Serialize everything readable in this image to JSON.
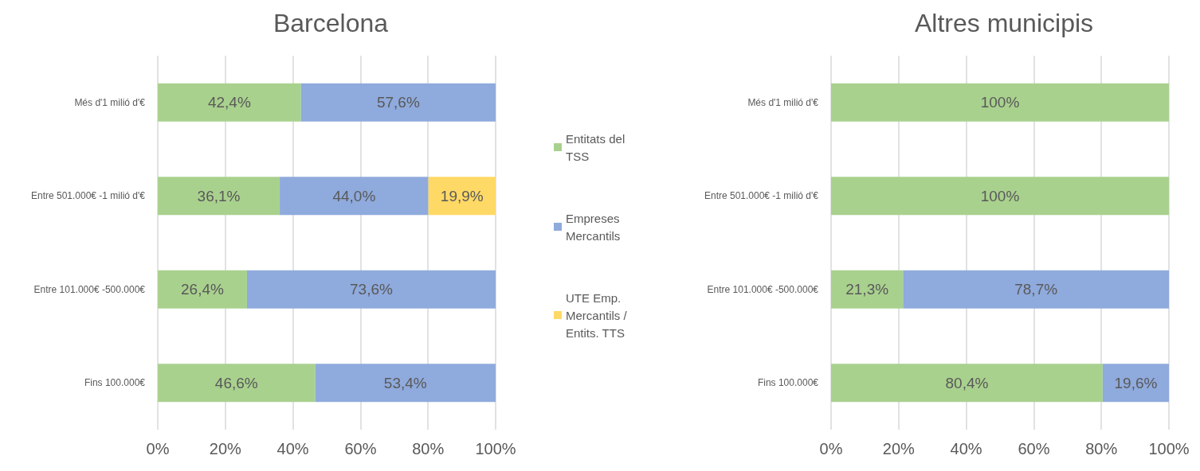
{
  "chart_data": [
    {
      "type": "bar",
      "title": "Barcelona",
      "orientation": "horizontal",
      "stacked": true,
      "grid": "x",
      "legend": "right",
      "categories": [
        "Més d'1 milió d'€",
        "Entre 501.000€ -1 milió d'€",
        "Entre 101.000€ -500.000€",
        "Fins 100.000€"
      ],
      "series": [
        {
          "name": "Entitats del TSS",
          "color": "#a9d18e",
          "values": [
            42.4,
            36.1,
            26.4,
            46.6
          ],
          "value_labels": [
            "42,4%",
            "36,1%",
            "26,4%",
            "46,6%"
          ]
        },
        {
          "name": "Empreses Mercantils",
          "color": "#8faadc",
          "values": [
            57.6,
            44.0,
            73.6,
            53.4
          ],
          "value_labels": [
            "57,6%",
            "44,0%",
            "73,6%",
            "53,4%"
          ]
        },
        {
          "name": "UTE Emp. Mercantils /Entits. TTS",
          "color": "#ffd966",
          "values": [
            null,
            19.9,
            null,
            null
          ],
          "value_labels": [
            null,
            "19,9%",
            null,
            null
          ]
        }
      ],
      "xlim": [
        0,
        100
      ],
      "xticks": [
        {
          "value": 0,
          "label": "0%"
        },
        {
          "value": 20,
          "label": "20%"
        },
        {
          "value": 40,
          "label": "40%"
        },
        {
          "value": 60,
          "label": "60%"
        },
        {
          "value": 80,
          "label": "80%"
        },
        {
          "value": 100,
          "label": "100%"
        }
      ]
    },
    {
      "type": "bar",
      "title": "Altres municipis",
      "orientation": "horizontal",
      "stacked": true,
      "grid": "x",
      "categories": [
        "Més d'1 milió d'€",
        "Entre 501.000€ -1 milió d'€",
        "Entre 101.000€ -500.000€",
        "Fins 100.000€"
      ],
      "series": [
        {
          "color": "#a9d18e",
          "values": [
            100,
            100,
            21.3,
            80.4
          ],
          "value_labels": [
            "100%",
            "100%",
            "21,3%",
            "80,4%"
          ]
        },
        {
          "color": "#8faadc",
          "values": [
            null,
            null,
            78.7,
            19.6
          ],
          "value_labels": [
            null,
            null,
            "78,7%",
            "19,6%"
          ]
        }
      ],
      "xlim": [
        0,
        100
      ],
      "xticks": [
        {
          "value": 0,
          "label": "0%"
        },
        {
          "value": 20,
          "label": "20%"
        },
        {
          "value": 40,
          "label": "40%"
        },
        {
          "value": 60,
          "label": "60%"
        },
        {
          "value": 80,
          "label": "80%"
        },
        {
          "value": 100,
          "label": "100%"
        }
      ]
    }
  ]
}
